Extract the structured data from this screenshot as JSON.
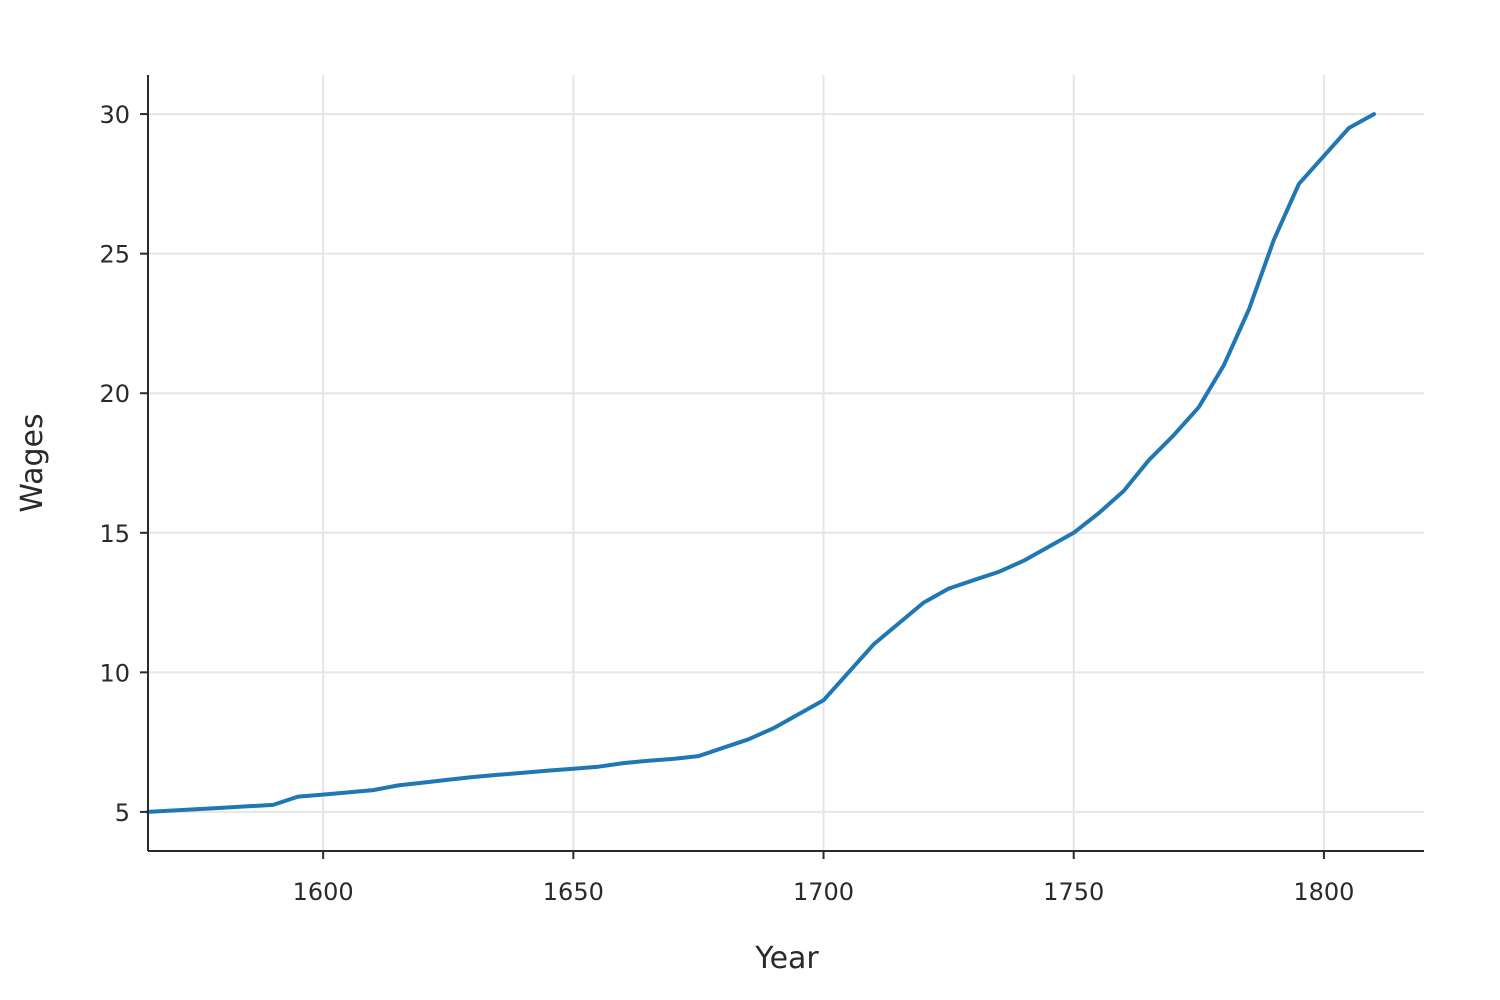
{
  "chart_data": {
    "type": "line",
    "title": "",
    "xlabel": "Year",
    "ylabel": "Wages",
    "xlim": [
      1565,
      1820
    ],
    "ylim": [
      3.6,
      31.4
    ],
    "x_ticks": [
      1600,
      1650,
      1700,
      1750,
      1800
    ],
    "y_ticks": [
      5,
      10,
      15,
      20,
      25,
      30
    ],
    "grid": true,
    "legend": "none",
    "series": [
      {
        "color": "#1f77b4",
        "x": [
          1565,
          1570,
          1575,
          1580,
          1585,
          1590,
          1595,
          1600,
          1605,
          1610,
          1615,
          1620,
          1625,
          1630,
          1635,
          1640,
          1645,
          1650,
          1655,
          1660,
          1665,
          1670,
          1675,
          1680,
          1685,
          1690,
          1695,
          1700,
          1705,
          1710,
          1715,
          1720,
          1725,
          1730,
          1735,
          1740,
          1745,
          1750,
          1755,
          1760,
          1765,
          1770,
          1775,
          1780,
          1785,
          1790,
          1795,
          1800,
          1805,
          1810
        ],
        "values": [
          5.0,
          5.05,
          5.1,
          5.15,
          5.2,
          5.25,
          5.55,
          5.62,
          5.7,
          5.78,
          5.95,
          6.05,
          6.15,
          6.25,
          6.33,
          6.4,
          6.48,
          6.55,
          6.62,
          6.75,
          6.83,
          6.9,
          7.0,
          7.3,
          7.6,
          8.0,
          8.5,
          9.0,
          10.0,
          11.0,
          11.75,
          12.5,
          13.0,
          13.3,
          13.6,
          14.0,
          14.5,
          15.0,
          15.7,
          16.5,
          17.6,
          18.5,
          19.5,
          21.0,
          23.0,
          25.5,
          27.5,
          28.5,
          29.5,
          30.0
        ]
      }
    ]
  }
}
